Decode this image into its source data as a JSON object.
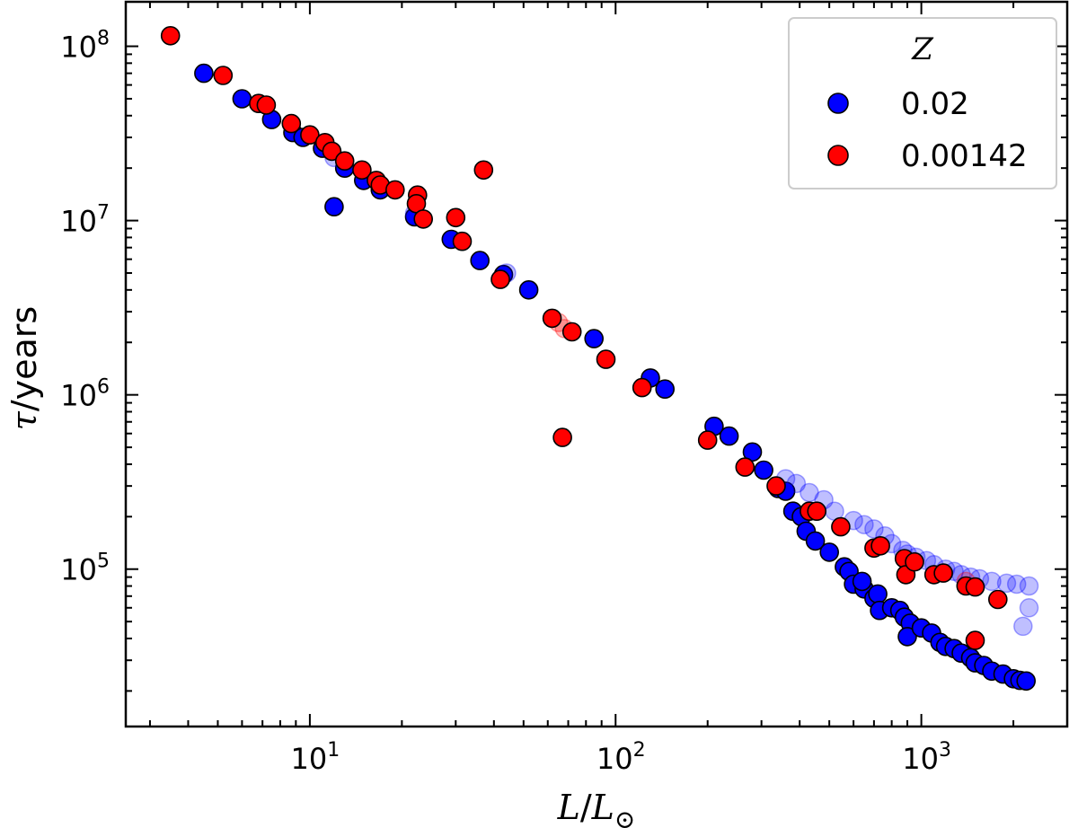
{
  "chart_data": {
    "type": "scatter",
    "x_scale": "log",
    "y_scale": "log",
    "xlim": [
      2.5,
      3000
    ],
    "ylim": [
      12500,
      180000000
    ],
    "xlabel": {
      "var": "L",
      "sep": "/",
      "ref": "L",
      "sub": "⊙"
    },
    "ylabel": {
      "var": "τ",
      "unit": "/years"
    },
    "x_ticks": [
      {
        "value": 10,
        "base": "10",
        "exp": "1"
      },
      {
        "value": 100,
        "base": "10",
        "exp": "2"
      },
      {
        "value": 1000,
        "base": "10",
        "exp": "3"
      }
    ],
    "y_ticks": [
      {
        "value": 100000,
        "base": "10",
        "exp": "5"
      },
      {
        "value": 1000000,
        "base": "10",
        "exp": "6"
      },
      {
        "value": 10000000,
        "base": "10",
        "exp": "7"
      },
      {
        "value": 100000000,
        "base": "10",
        "exp": "8"
      }
    ],
    "legend": {
      "title": "Z",
      "position": "top-right"
    },
    "series": [
      {
        "name": "0.02",
        "color": "#0000ff",
        "faded": false,
        "points": [
          [
            4.5,
            70000000
          ],
          [
            6.0,
            50000000
          ],
          [
            7.5,
            38000000
          ],
          [
            8.8,
            32000000
          ],
          [
            9.5,
            30000000
          ],
          [
            11.0,
            26000000
          ],
          [
            12.0,
            12000000
          ],
          [
            13.0,
            20000000
          ],
          [
            15.0,
            17000000
          ],
          [
            17.0,
            15000000
          ],
          [
            22.0,
            10500000
          ],
          [
            29.0,
            7800000
          ],
          [
            36.0,
            5900000
          ],
          [
            43.0,
            4900000
          ],
          [
            52.0,
            4000000
          ],
          [
            85.0,
            2100000
          ],
          [
            130.0,
            1250000
          ],
          [
            145.0,
            1080000
          ],
          [
            210.0,
            660000
          ],
          [
            235.0,
            580000
          ],
          [
            280.0,
            470000
          ],
          [
            305.0,
            370000
          ],
          [
            340.0,
            290000
          ],
          [
            360.0,
            280000
          ],
          [
            380.0,
            215000
          ],
          [
            405.0,
            200000
          ],
          [
            420.0,
            165000
          ],
          [
            450.0,
            145000
          ],
          [
            500.0,
            125000
          ],
          [
            560.0,
            103000
          ],
          [
            580.0,
            97000
          ],
          [
            600.0,
            82000
          ],
          [
            650.0,
            77000
          ],
          [
            640.0,
            85000
          ],
          [
            700.0,
            68000
          ],
          [
            720.0,
            72000
          ],
          [
            730.0,
            58000
          ],
          [
            800.0,
            60000
          ],
          [
            850.0,
            58000
          ],
          [
            880.0,
            53000
          ],
          [
            920.0,
            49000
          ],
          [
            900.0,
            41000
          ],
          [
            1000.0,
            46000
          ],
          [
            1080.0,
            43000
          ],
          [
            1150.0,
            38000
          ],
          [
            1200.0,
            36000
          ],
          [
            1280.0,
            35000
          ],
          [
            1350.0,
            33000
          ],
          [
            1450.0,
            31000
          ],
          [
            1500.0,
            29000
          ],
          [
            1600.0,
            28000
          ],
          [
            1700.0,
            26000
          ],
          [
            1850.0,
            25000
          ],
          [
            2000.0,
            23500
          ],
          [
            2100.0,
            23000
          ],
          [
            2200.0,
            22800
          ]
        ]
      },
      {
        "name": "0.02",
        "color": "#0000ff",
        "faded": true,
        "points": [
          [
            12.0,
            23000000
          ],
          [
            22.0,
            11000000
          ],
          [
            44.0,
            5000000
          ],
          [
            360.0,
            330000
          ],
          [
            390.0,
            310000
          ],
          [
            430.0,
            275000
          ],
          [
            480.0,
            250000
          ],
          [
            520.0,
            215000
          ],
          [
            600.0,
            190000
          ],
          [
            650.0,
            180000
          ],
          [
            700.0,
            170000
          ],
          [
            760.0,
            155000
          ],
          [
            800.0,
            140000
          ],
          [
            870.0,
            128000
          ],
          [
            900.0,
            122000
          ],
          [
            960.0,
            117000
          ],
          [
            1040.0,
            112000
          ],
          [
            1100.0,
            106000
          ],
          [
            1200.0,
            100000
          ],
          [
            1280.0,
            97000
          ],
          [
            1350.0,
            93000
          ],
          [
            1450.0,
            90000
          ],
          [
            1550.0,
            88000
          ],
          [
            1700.0,
            85000
          ],
          [
            1900.0,
            83000
          ],
          [
            2050.0,
            82000
          ],
          [
            2250.0,
            80000
          ],
          [
            2250.0,
            60000
          ],
          [
            2150.0,
            47000
          ]
        ]
      },
      {
        "name": "0.00142",
        "color": "#ff0000",
        "faded": true,
        "points": [
          [
            65.0,
            2600000
          ],
          [
            68.0,
            2400000
          ],
          [
            1400.0,
            85000
          ]
        ]
      },
      {
        "name": "0.00142",
        "color": "#ff0000",
        "faded": false,
        "points": [
          [
            3.5,
            115000000
          ],
          [
            5.2,
            68000000
          ],
          [
            6.8,
            47000000
          ],
          [
            7.2,
            46000000
          ],
          [
            8.7,
            36000000
          ],
          [
            10.0,
            31000000
          ],
          [
            11.2,
            28000000
          ],
          [
            11.8,
            25000000
          ],
          [
            13.0,
            22000000
          ],
          [
            14.8,
            19500000
          ],
          [
            16.5,
            17000000
          ],
          [
            17.0,
            16000000
          ],
          [
            19.0,
            15000000
          ],
          [
            22.5,
            14000000
          ],
          [
            22.3,
            12500000
          ],
          [
            23.5,
            10200000
          ],
          [
            30.0,
            10400000
          ],
          [
            31.5,
            7600000
          ],
          [
            37.0,
            19500000
          ],
          [
            42.0,
            4600000
          ],
          [
            62.0,
            2750000
          ],
          [
            67.0,
            570000
          ],
          [
            72.0,
            2300000
          ],
          [
            93.0,
            1600000
          ],
          [
            122.0,
            1100000
          ],
          [
            200.0,
            550000
          ],
          [
            265.0,
            385000
          ],
          [
            335.0,
            300000
          ],
          [
            430.0,
            215000
          ],
          [
            455.0,
            215000
          ],
          [
            545.0,
            175000
          ],
          [
            700.0,
            132000
          ],
          [
            735.0,
            136000
          ],
          [
            880.0,
            115000
          ],
          [
            890.0,
            93000
          ],
          [
            950.0,
            110000
          ],
          [
            1100.0,
            93000
          ],
          [
            1180.0,
            95000
          ],
          [
            1400.0,
            80000
          ],
          [
            1500.0,
            79000
          ],
          [
            1780.0,
            67000
          ],
          [
            1500.0,
            39000
          ]
        ]
      }
    ],
    "legend_entries": [
      {
        "label": "0.02",
        "color": "#0000ff"
      },
      {
        "label": "0.00142",
        "color": "#ff0000"
      }
    ]
  }
}
